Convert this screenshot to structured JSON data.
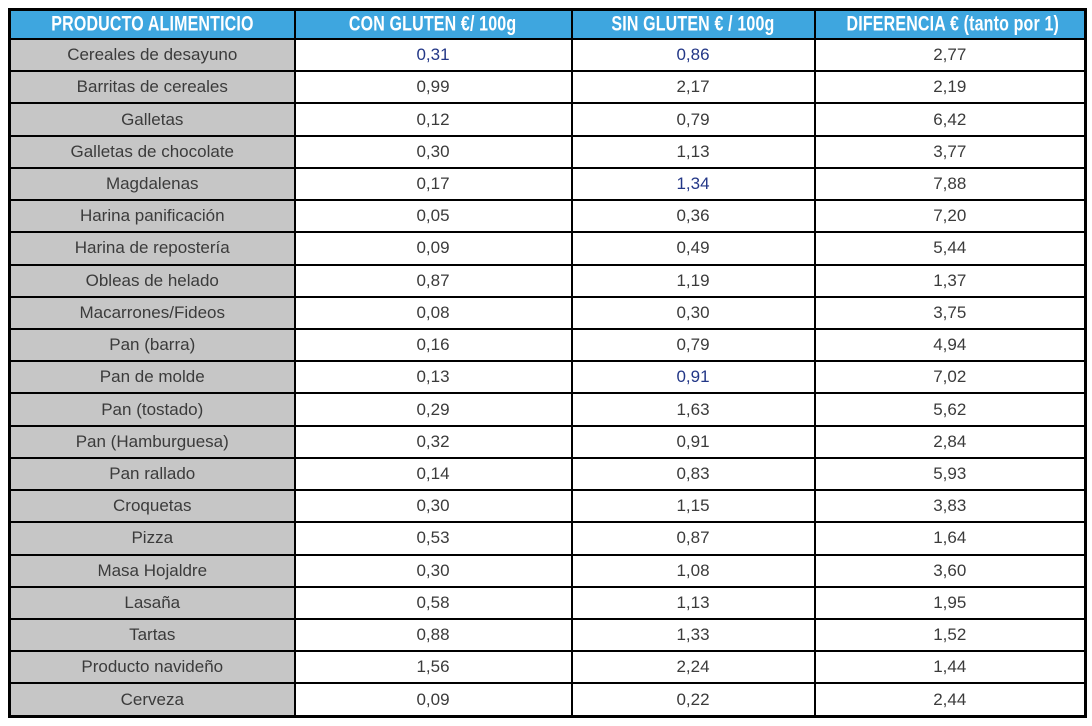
{
  "colors": {
    "header_bg": "#3EA6DF",
    "header_text": "#FFFFFF",
    "label_column_bg": "#C6C6C6",
    "border": "#000000",
    "text": "#3B3B3B",
    "accent_blue": "#233787"
  },
  "table": {
    "columns": [
      {
        "label": "PRODUCTO ALIMENTICIO"
      },
      {
        "label": "CON GLUTEN €/ 100g"
      },
      {
        "label": "SIN GLUTEN € / 100g"
      },
      {
        "label": "DIFERENCIA € (tanto por 1)"
      }
    ],
    "rows": [
      {
        "producto": "Cereales de desayuno",
        "values": [
          "0,31",
          "0,86",
          "2,77"
        ],
        "blue": [
          true,
          true,
          false
        ]
      },
      {
        "producto": "Barritas de cereales",
        "values": [
          "0,99",
          "2,17",
          "2,19"
        ],
        "blue": [
          false,
          false,
          false
        ]
      },
      {
        "producto": "Galletas",
        "values": [
          "0,12",
          "0,79",
          "6,42"
        ],
        "blue": [
          false,
          false,
          false
        ]
      },
      {
        "producto": "Galletas de chocolate",
        "values": [
          "0,30",
          "1,13",
          "3,77"
        ],
        "blue": [
          false,
          false,
          false
        ]
      },
      {
        "producto": "Magdalenas",
        "values": [
          "0,17",
          "1,34",
          "7,88"
        ],
        "blue": [
          false,
          true,
          false
        ]
      },
      {
        "producto": "Harina panificación",
        "values": [
          "0,05",
          "0,36",
          "7,20"
        ],
        "blue": [
          false,
          false,
          false
        ]
      },
      {
        "producto": "Harina de repostería",
        "values": [
          "0,09",
          "0,49",
          "5,44"
        ],
        "blue": [
          false,
          false,
          false
        ]
      },
      {
        "producto": "Obleas de helado",
        "values": [
          "0,87",
          "1,19",
          "1,37"
        ],
        "blue": [
          false,
          false,
          false
        ]
      },
      {
        "producto": "Macarrones/Fideos",
        "values": [
          "0,08",
          "0,30",
          "3,75"
        ],
        "blue": [
          false,
          false,
          false
        ]
      },
      {
        "producto": "Pan (barra)",
        "values": [
          "0,16",
          "0,79",
          "4,94"
        ],
        "blue": [
          false,
          false,
          false
        ]
      },
      {
        "producto": "Pan de molde",
        "values": [
          "0,13",
          "0,91",
          "7,02"
        ],
        "blue": [
          false,
          true,
          false
        ]
      },
      {
        "producto": "Pan (tostado)",
        "values": [
          "0,29",
          "1,63",
          "5,62"
        ],
        "blue": [
          false,
          false,
          false
        ]
      },
      {
        "producto": "Pan (Hamburguesa)",
        "values": [
          "0,32",
          "0,91",
          "2,84"
        ],
        "blue": [
          false,
          false,
          false
        ]
      },
      {
        "producto": "Pan rallado",
        "values": [
          "0,14",
          "0,83",
          "5,93"
        ],
        "blue": [
          false,
          false,
          false
        ]
      },
      {
        "producto": "Croquetas",
        "values": [
          "0,30",
          "1,15",
          "3,83"
        ],
        "blue": [
          false,
          false,
          false
        ]
      },
      {
        "producto": "Pizza",
        "values": [
          "0,53",
          "0,87",
          "1,64"
        ],
        "blue": [
          false,
          false,
          false
        ]
      },
      {
        "producto": "Masa Hojaldre",
        "values": [
          "0,30",
          "1,08",
          "3,60"
        ],
        "blue": [
          false,
          false,
          false
        ]
      },
      {
        "producto": "Lasaña",
        "values": [
          "0,58",
          "1,13",
          "1,95"
        ],
        "blue": [
          false,
          false,
          false
        ]
      },
      {
        "producto": "Tartas",
        "values": [
          "0,88",
          "1,33",
          "1,52"
        ],
        "blue": [
          false,
          false,
          false
        ]
      },
      {
        "producto": "Producto navideño",
        "values": [
          "1,56",
          "2,24",
          "1,44"
        ],
        "blue": [
          false,
          false,
          false
        ]
      },
      {
        "producto": "Cerveza",
        "values": [
          "0,09",
          "0,22",
          "2,44"
        ],
        "blue": [
          false,
          false,
          false
        ]
      }
    ]
  },
  "chart_data": {
    "type": "table",
    "categories": [
      "Cereales de desayuno",
      "Barritas de cereales",
      "Galletas",
      "Galletas de chocolate",
      "Magdalenas",
      "Harina panificación",
      "Harina de repostería",
      "Obleas de helado",
      "Macarrones/Fideos",
      "Pan (barra)",
      "Pan de molde",
      "Pan (tostado)",
      "Pan (Hamburguesa)",
      "Pan rallado",
      "Croquetas",
      "Pizza",
      "Masa Hojaldre",
      "Lasaña",
      "Tartas",
      "Producto navideño",
      "Cerveza"
    ],
    "series": [
      {
        "name": "CON GLUTEN €/ 100g",
        "values": [
          0.31,
          0.99,
          0.12,
          0.3,
          0.17,
          0.05,
          0.09,
          0.87,
          0.08,
          0.16,
          0.13,
          0.29,
          0.32,
          0.14,
          0.3,
          0.53,
          0.3,
          0.58,
          0.88,
          1.56,
          0.09
        ]
      },
      {
        "name": "SIN GLUTEN € / 100g",
        "values": [
          0.86,
          2.17,
          0.79,
          1.13,
          1.34,
          0.36,
          0.49,
          1.19,
          0.3,
          0.79,
          0.91,
          1.63,
          0.91,
          0.83,
          1.15,
          0.87,
          1.08,
          1.13,
          1.33,
          2.24,
          0.22
        ]
      },
      {
        "name": "DIFERENCIA € (tanto por 1)",
        "values": [
          2.77,
          2.19,
          6.42,
          3.77,
          7.88,
          7.2,
          5.44,
          1.37,
          3.75,
          4.94,
          7.02,
          5.62,
          2.84,
          5.93,
          3.83,
          1.64,
          3.6,
          1.95,
          1.52,
          1.44,
          2.44
        ]
      }
    ],
    "decimal_separator": ",",
    "column_header_row": true,
    "grid": "black cell borders, gray label column, blue header row"
  }
}
